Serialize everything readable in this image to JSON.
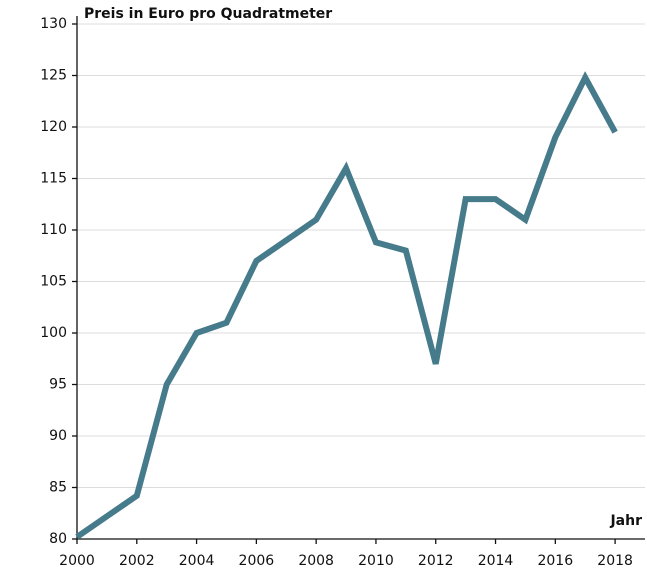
{
  "chart_data": {
    "type": "line",
    "title": "Preis in Euro pro Quadratmeter",
    "x_label": "Jahr",
    "x": [
      2000,
      2001,
      2002,
      2003,
      2004,
      2005,
      2006,
      2007,
      2008,
      2009,
      2010,
      2011,
      2012,
      2013,
      2014,
      2015,
      2016,
      2017,
      2018
    ],
    "series": [
      {
        "name": "Preis",
        "color": "#467b8b",
        "values": [
          80.2,
          82.2,
          84.2,
          95,
          100,
          101,
          107,
          109,
          111,
          116,
          108.8,
          108,
          97,
          113,
          113,
          111,
          119,
          124.8,
          119.5
        ]
      }
    ],
    "xlim": [
      2000,
      2019
    ],
    "xticks": [
      2000,
      2002,
      2004,
      2006,
      2008,
      2010,
      2012,
      2014,
      2016,
      2018
    ],
    "ylim": [
      80,
      130
    ],
    "yticks": [
      80,
      85,
      90,
      95,
      100,
      105,
      110,
      115,
      120,
      125,
      130
    ],
    "grid": true
  }
}
